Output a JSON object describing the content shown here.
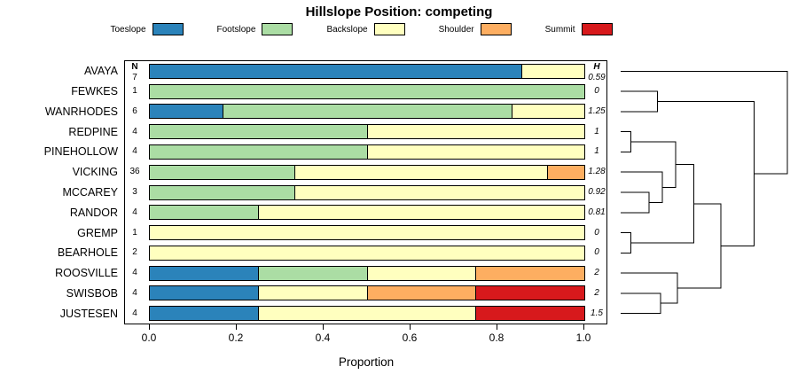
{
  "chart_data": {
    "type": "bar",
    "orientation": "horizontal",
    "stacked": true,
    "title": "Hillslope Position: competing",
    "xlabel": "Proportion",
    "xlim": [
      0,
      1
    ],
    "x_ticks": [
      "0.0",
      "0.2",
      "0.4",
      "0.6",
      "0.8",
      "1.0"
    ],
    "x_tick_values": [
      0,
      0.2,
      0.4,
      0.6,
      0.8,
      1.0
    ],
    "n_header": "N",
    "h_header": "H",
    "legend": [
      {
        "label": "Toeslope",
        "color": "#2B83BA"
      },
      {
        "label": "Footslope",
        "color": "#ABDDA4"
      },
      {
        "label": "Backslope",
        "color": "#FFFFBF"
      },
      {
        "label": "Shoulder",
        "color": "#FDAE61"
      },
      {
        "label": "Summit",
        "color": "#D7191C"
      }
    ],
    "rows": [
      {
        "label": "AVAYA",
        "n": "7",
        "h": "0.59",
        "fractions": [
          0.857,
          0,
          0.143,
          0,
          0
        ]
      },
      {
        "label": "FEWKES",
        "n": "1",
        "h": "0",
        "fractions": [
          0,
          1,
          0,
          0,
          0
        ]
      },
      {
        "label": "WANRHODES",
        "n": "6",
        "h": "1.25",
        "fractions": [
          0.167,
          0.666,
          0.167,
          0,
          0
        ]
      },
      {
        "label": "REDPINE",
        "n": "4",
        "h": "1",
        "fractions": [
          0,
          0.5,
          0.5,
          0,
          0
        ]
      },
      {
        "label": "PINEHOLLOW",
        "n": "4",
        "h": "1",
        "fractions": [
          0,
          0.5,
          0.5,
          0,
          0
        ]
      },
      {
        "label": "VICKING",
        "n": "36",
        "h": "1.28",
        "fractions": [
          0,
          0.333,
          0.584,
          0.083,
          0
        ]
      },
      {
        "label": "MCCAREY",
        "n": "3",
        "h": "0.92",
        "fractions": [
          0,
          0.333,
          0.667,
          0,
          0
        ]
      },
      {
        "label": "RANDOR",
        "n": "4",
        "h": "0.81",
        "fractions": [
          0,
          0.25,
          0.75,
          0,
          0
        ]
      },
      {
        "label": "GREMP",
        "n": "1",
        "h": "0",
        "fractions": [
          0,
          0,
          1,
          0,
          0
        ]
      },
      {
        "label": "BEARHOLE",
        "n": "2",
        "h": "0",
        "fractions": [
          0,
          0,
          1,
          0,
          0
        ]
      },
      {
        "label": "ROOSVILLE",
        "n": "4",
        "h": "2",
        "fractions": [
          0.25,
          0.25,
          0.25,
          0.25,
          0
        ]
      },
      {
        "label": "SWISBOB",
        "n": "4",
        "h": "2",
        "fractions": [
          0.25,
          0,
          0.25,
          0.25,
          0.25
        ]
      },
      {
        "label": "JUSTESEN",
        "n": "4",
        "h": "1.5",
        "fractions": [
          0.25,
          0,
          0.5,
          0,
          0.25
        ]
      }
    ],
    "dendrogram": {
      "merges": [
        {
          "a": "REDPINE",
          "b": "PINEHOLLOW",
          "h": 0.06
        },
        {
          "a": "GREMP",
          "b": "BEARHOLE",
          "h": 0.06
        },
        {
          "a": "MCCAREY",
          "b": "RANDOR",
          "h": 0.17
        },
        {
          "a": "VICKING",
          "b": "@2",
          "h": 0.25
        },
        {
          "a": "@0",
          "b": "@3",
          "h": 0.33
        },
        {
          "a": "@4",
          "b": "@1",
          "h": 0.44
        },
        {
          "a": "FEWKES",
          "b": "WANRHODES",
          "h": 0.22
        },
        {
          "a": "SWISBOB",
          "b": "JUSTESEN",
          "h": 0.24
        },
        {
          "a": "ROOSVILLE",
          "b": "@7",
          "h": 0.34
        },
        {
          "a": "@5",
          "b": "@8",
          "h": 0.6
        },
        {
          "a": "@6",
          "b": "@9",
          "h": 0.8
        },
        {
          "a": "AVAYA",
          "b": "@10",
          "h": 1.0
        }
      ]
    }
  }
}
